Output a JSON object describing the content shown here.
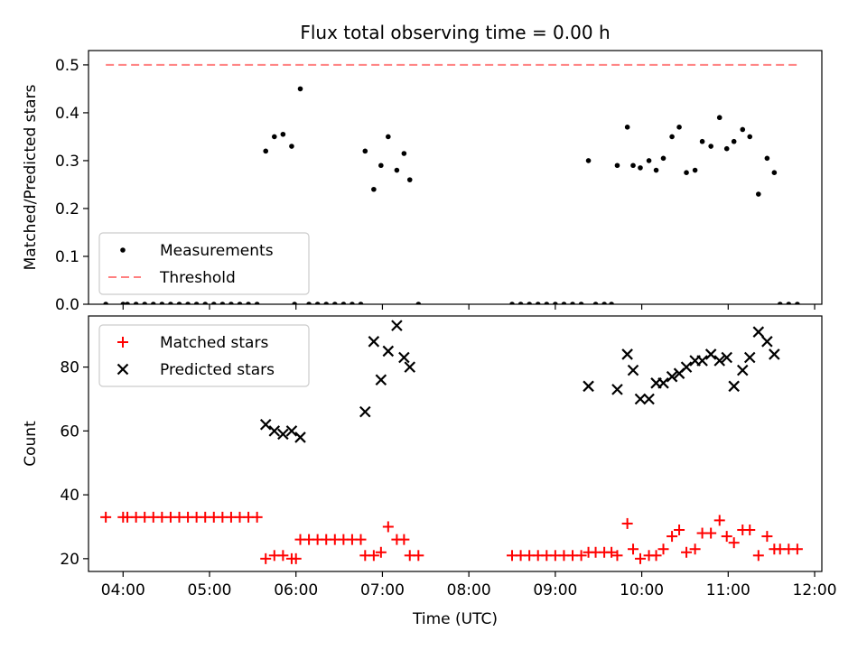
{
  "chart_data": [
    {
      "type": "scatter",
      "title": "Flux total observing time = 0.00 h",
      "xlabel": "",
      "ylabel": "Matched/Predicted stars",
      "xlim": [
        "03:36",
        "12:05"
      ],
      "ylim": [
        0,
        0.53
      ],
      "x_ticks": [
        "04:00",
        "05:00",
        "06:00",
        "07:00",
        "08:00",
        "09:00",
        "10:00",
        "11:00",
        "12:00"
      ],
      "y_ticks": [
        "0.0",
        "0.1",
        "0.2",
        "0.3",
        "0.4",
        "0.5"
      ],
      "x_tick_labels_visible": false,
      "legend": {
        "position": "lower-left",
        "entries": [
          "Measurements",
          "Threshold"
        ]
      },
      "series": [
        {
          "name": "Measurements",
          "color": "#000000",
          "marker": "dot",
          "points": [
            [
              "03:48",
              0
            ],
            [
              "04:00",
              0
            ],
            [
              "04:03",
              0
            ],
            [
              "04:09",
              0
            ],
            [
              "04:15",
              0
            ],
            [
              "04:21",
              0
            ],
            [
              "04:27",
              0
            ],
            [
              "04:33",
              0
            ],
            [
              "04:39",
              0
            ],
            [
              "04:45",
              0
            ],
            [
              "04:51",
              0
            ],
            [
              "04:57",
              0
            ],
            [
              "05:03",
              0
            ],
            [
              "05:09",
              0
            ],
            [
              "05:15",
              0
            ],
            [
              "05:21",
              0
            ],
            [
              "05:27",
              0
            ],
            [
              "05:33",
              0
            ],
            [
              "05:39",
              0.32
            ],
            [
              "05:45",
              0.35
            ],
            [
              "05:51",
              0.355
            ],
            [
              "05:57",
              0.33
            ],
            [
              "05:59",
              0
            ],
            [
              "06:03",
              0.45
            ],
            [
              "06:09",
              0
            ],
            [
              "06:15",
              0
            ],
            [
              "06:21",
              0
            ],
            [
              "06:27",
              0
            ],
            [
              "06:33",
              0
            ],
            [
              "06:39",
              0
            ],
            [
              "06:45",
              0
            ],
            [
              "06:48",
              0.32
            ],
            [
              "06:54",
              0.24
            ],
            [
              "06:59",
              0.29
            ],
            [
              "07:04",
              0.35
            ],
            [
              "07:10",
              0.28
            ],
            [
              "07:15",
              0.315
            ],
            [
              "07:19",
              0.26
            ],
            [
              "07:25",
              0
            ],
            [
              "08:30",
              0
            ],
            [
              "08:36",
              0
            ],
            [
              "08:42",
              0
            ],
            [
              "08:48",
              0
            ],
            [
              "08:54",
              0
            ],
            [
              "09:00",
              0
            ],
            [
              "09:06",
              0
            ],
            [
              "09:12",
              0
            ],
            [
              "09:18",
              0
            ],
            [
              "09:23",
              0.3
            ],
            [
              "09:28",
              0
            ],
            [
              "09:34",
              0
            ],
            [
              "09:39",
              0
            ],
            [
              "09:43",
              0.29
            ],
            [
              "09:50",
              0.37
            ],
            [
              "09:54",
              0.29
            ],
            [
              "09:59",
              0.285
            ],
            [
              "10:05",
              0.3
            ],
            [
              "10:10",
              0.28
            ],
            [
              "10:15",
              0.305
            ],
            [
              "10:21",
              0.35
            ],
            [
              "10:26",
              0.37
            ],
            [
              "10:31",
              0.275
            ],
            [
              "10:37",
              0.28
            ],
            [
              "10:42",
              0.34
            ],
            [
              "10:48",
              0.33
            ],
            [
              "10:54",
              0.39
            ],
            [
              "10:59",
              0.325
            ],
            [
              "11:04",
              0.34
            ],
            [
              "11:10",
              0.365
            ],
            [
              "11:15",
              0.35
            ],
            [
              "11:21",
              0.23
            ],
            [
              "11:27",
              0.305
            ],
            [
              "11:32",
              0.275
            ],
            [
              "11:36",
              0
            ],
            [
              "11:42",
              0
            ],
            [
              "11:48",
              0
            ]
          ]
        },
        {
          "name": "Threshold",
          "color": "#ff8080",
          "style": "dashed",
          "points": [
            [
              "03:48",
              0.5
            ],
            [
              "11:48",
              0.5
            ]
          ]
        }
      ]
    },
    {
      "type": "scatter",
      "title": "",
      "xlabel": "Time (UTC)",
      "ylabel": "Count",
      "xlim": [
        "03:36",
        "12:05"
      ],
      "ylim": [
        16,
        96
      ],
      "x_ticks": [
        "04:00",
        "05:00",
        "06:00",
        "07:00",
        "08:00",
        "09:00",
        "10:00",
        "11:00",
        "12:00"
      ],
      "y_ticks": [
        "20",
        "40",
        "60",
        "80"
      ],
      "legend": {
        "position": "upper-left",
        "entries": [
          "Matched stars",
          "Predicted stars"
        ]
      },
      "series": [
        {
          "name": "Matched stars",
          "color": "#ff0000",
          "marker": "plus",
          "points": [
            [
              "03:48",
              33
            ],
            [
              "04:00",
              33
            ],
            [
              "04:03",
              33
            ],
            [
              "04:09",
              33
            ],
            [
              "04:15",
              33
            ],
            [
              "04:21",
              33
            ],
            [
              "04:27",
              33
            ],
            [
              "04:33",
              33
            ],
            [
              "04:39",
              33
            ],
            [
              "04:45",
              33
            ],
            [
              "04:51",
              33
            ],
            [
              "04:57",
              33
            ],
            [
              "05:03",
              33
            ],
            [
              "05:09",
              33
            ],
            [
              "05:15",
              33
            ],
            [
              "05:21",
              33
            ],
            [
              "05:27",
              33
            ],
            [
              "05:33",
              33
            ],
            [
              "05:39",
              20
            ],
            [
              "05:45",
              21
            ],
            [
              "05:51",
              21
            ],
            [
              "05:57",
              20
            ],
            [
              "06:00",
              20
            ],
            [
              "06:03",
              26
            ],
            [
              "06:09",
              26
            ],
            [
              "06:15",
              26
            ],
            [
              "06:21",
              26
            ],
            [
              "06:27",
              26
            ],
            [
              "06:33",
              26
            ],
            [
              "06:39",
              26
            ],
            [
              "06:45",
              26
            ],
            [
              "06:48",
              21
            ],
            [
              "06:54",
              21
            ],
            [
              "06:59",
              22
            ],
            [
              "07:04",
              30
            ],
            [
              "07:10",
              26
            ],
            [
              "07:15",
              26
            ],
            [
              "07:19",
              21
            ],
            [
              "07:25",
              21
            ],
            [
              "08:30",
              21
            ],
            [
              "08:36",
              21
            ],
            [
              "08:42",
              21
            ],
            [
              "08:48",
              21
            ],
            [
              "08:54",
              21
            ],
            [
              "09:00",
              21
            ],
            [
              "09:06",
              21
            ],
            [
              "09:12",
              21
            ],
            [
              "09:18",
              21
            ],
            [
              "09:23",
              22
            ],
            [
              "09:28",
              22
            ],
            [
              "09:34",
              22
            ],
            [
              "09:39",
              22
            ],
            [
              "09:43",
              21
            ],
            [
              "09:50",
              31
            ],
            [
              "09:54",
              23
            ],
            [
              "09:59",
              20
            ],
            [
              "10:05",
              21
            ],
            [
              "10:10",
              21
            ],
            [
              "10:15",
              23
            ],
            [
              "10:21",
              27
            ],
            [
              "10:26",
              29
            ],
            [
              "10:31",
              22
            ],
            [
              "10:37",
              23
            ],
            [
              "10:42",
              28
            ],
            [
              "10:48",
              28
            ],
            [
              "10:54",
              32
            ],
            [
              "10:59",
              27
            ],
            [
              "11:04",
              25
            ],
            [
              "11:10",
              29
            ],
            [
              "11:15",
              29
            ],
            [
              "11:21",
              21
            ],
            [
              "11:27",
              27
            ],
            [
              "11:32",
              23
            ],
            [
              "11:36",
              23
            ],
            [
              "11:42",
              23
            ],
            [
              "11:48",
              23
            ]
          ]
        },
        {
          "name": "Predicted stars",
          "color": "#000000",
          "marker": "x",
          "points": [
            [
              "05:39",
              62
            ],
            [
              "05:45",
              60
            ],
            [
              "05:51",
              59
            ],
            [
              "05:57",
              60
            ],
            [
              "06:03",
              58
            ],
            [
              "06:48",
              66
            ],
            [
              "06:54",
              88
            ],
            [
              "06:59",
              76
            ],
            [
              "07:04",
              85
            ],
            [
              "07:10",
              93
            ],
            [
              "07:15",
              83
            ],
            [
              "07:19",
              80
            ],
            [
              "09:23",
              74
            ],
            [
              "09:43",
              73
            ],
            [
              "09:50",
              84
            ],
            [
              "09:54",
              79
            ],
            [
              "09:59",
              70
            ],
            [
              "10:05",
              70
            ],
            [
              "10:10",
              75
            ],
            [
              "10:15",
              75
            ],
            [
              "10:21",
              77
            ],
            [
              "10:26",
              78
            ],
            [
              "10:31",
              80
            ],
            [
              "10:37",
              82
            ],
            [
              "10:42",
              82
            ],
            [
              "10:48",
              84
            ],
            [
              "10:54",
              82
            ],
            [
              "10:59",
              83
            ],
            [
              "11:04",
              74
            ],
            [
              "11:10",
              79
            ],
            [
              "11:15",
              83
            ],
            [
              "11:21",
              91
            ],
            [
              "11:27",
              88
            ],
            [
              "11:32",
              84
            ]
          ]
        }
      ]
    }
  ]
}
